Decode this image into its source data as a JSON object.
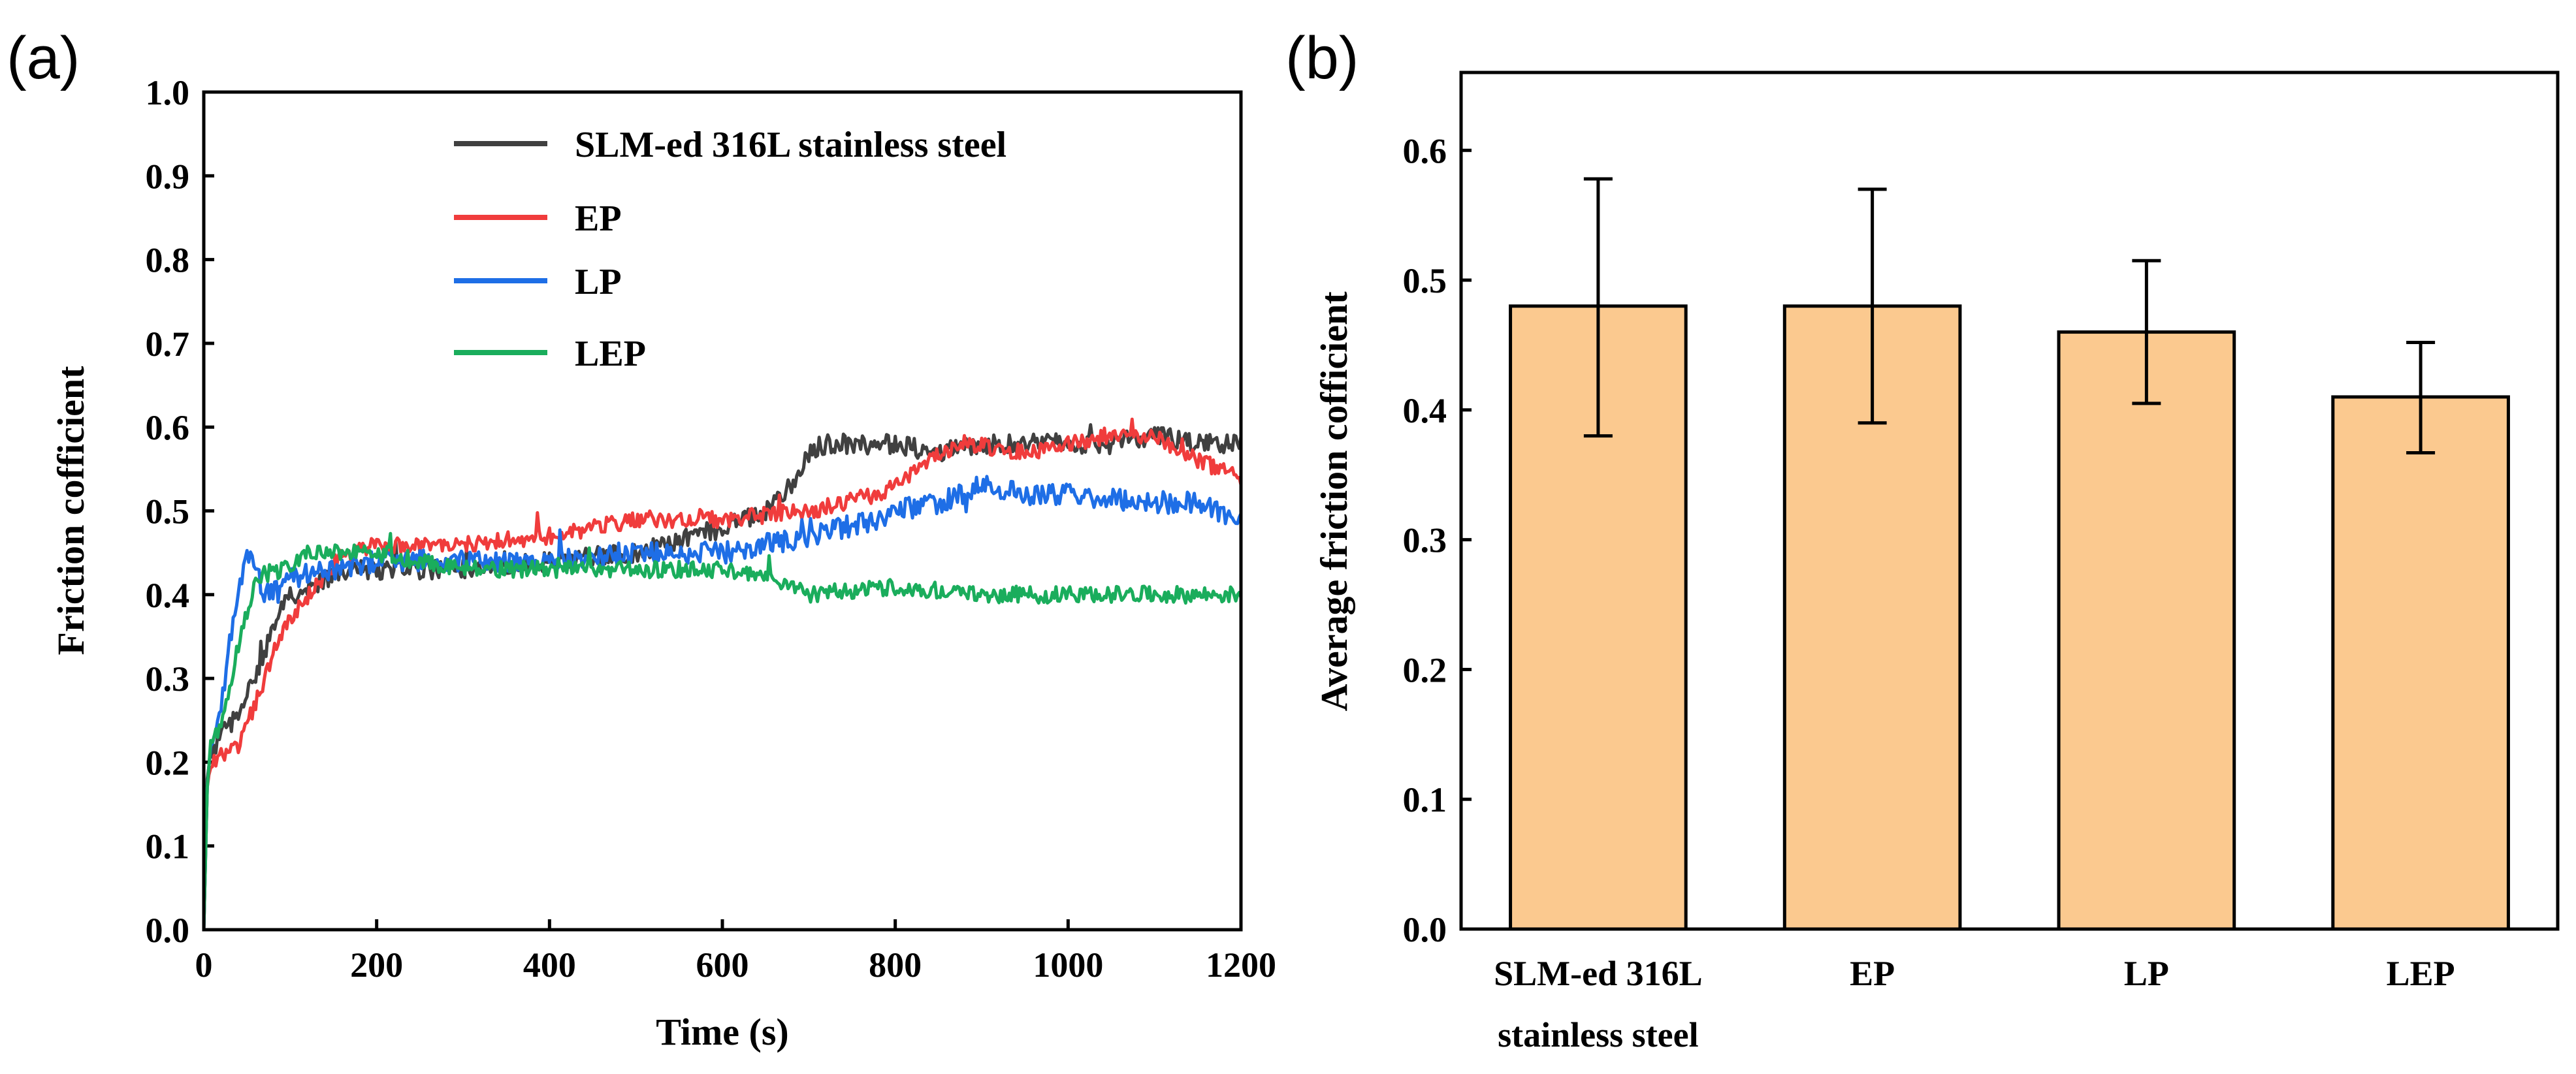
{
  "chart_data": [
    {
      "panel_label": "(a)",
      "type": "line",
      "xlabel": "Time (s)",
      "ylabel": "Friction cofficient",
      "xlim": [
        0,
        1200
      ],
      "ylim": [
        0.0,
        1.0
      ],
      "x_ticks": [
        "0",
        "200",
        "400",
        "600",
        "800",
        "1000",
        "1200"
      ],
      "x_tick_values": [
        0,
        200,
        400,
        600,
        800,
        1000,
        1200
      ],
      "y_ticks": [
        "0.0",
        "0.1",
        "0.2",
        "0.3",
        "0.4",
        "0.5",
        "0.6",
        "0.7",
        "0.8",
        "0.9",
        "1.0"
      ],
      "y_tick_values": [
        0.0,
        0.1,
        0.2,
        0.3,
        0.4,
        0.5,
        0.6,
        0.7,
        0.8,
        0.9,
        1.0
      ],
      "legend_position": "top-center",
      "series": [
        {
          "name": "SLM-ed 316L stainless steel",
          "color": "#404040",
          "noise": 0.012,
          "x": [
            0,
            4,
            8,
            20,
            40,
            60,
            80,
            100,
            130,
            160,
            200,
            300,
            400,
            500,
            600,
            650,
            680,
            700,
            720,
            800,
            850,
            900,
            1000,
            1050,
            1100,
            1150,
            1200
          ],
          "y": [
            0.0,
            0.18,
            0.21,
            0.23,
            0.26,
            0.3,
            0.36,
            0.4,
            0.41,
            0.43,
            0.43,
            0.43,
            0.44,
            0.45,
            0.48,
            0.5,
            0.53,
            0.57,
            0.58,
            0.58,
            0.57,
            0.58,
            0.58,
            0.58,
            0.59,
            0.58,
            0.58
          ]
        },
        {
          "name": "EP",
          "color": "#f03c3c",
          "noise": 0.01,
          "x": [
            0,
            4,
            8,
            20,
            40,
            60,
            80,
            100,
            130,
            160,
            200,
            300,
            400,
            500,
            600,
            700,
            780,
            840,
            880,
            950,
            1000,
            1050,
            1100,
            1150,
            1200
          ],
          "y": [
            0.0,
            0.17,
            0.2,
            0.21,
            0.22,
            0.27,
            0.33,
            0.37,
            0.41,
            0.45,
            0.46,
            0.46,
            0.47,
            0.49,
            0.49,
            0.5,
            0.52,
            0.56,
            0.58,
            0.57,
            0.58,
            0.59,
            0.59,
            0.56,
            0.54
          ]
        },
        {
          "name": "LP",
          "color": "#1e6ee6",
          "noise": 0.013,
          "x": [
            0,
            4,
            8,
            20,
            35,
            50,
            60,
            70,
            100,
            150,
            200,
            300,
            400,
            500,
            600,
            700,
            780,
            800,
            850,
            900,
            950,
            1000,
            1100,
            1150,
            1200
          ],
          "y": [
            0.0,
            0.17,
            0.22,
            0.26,
            0.38,
            0.45,
            0.43,
            0.4,
            0.42,
            0.43,
            0.44,
            0.44,
            0.44,
            0.45,
            0.45,
            0.47,
            0.49,
            0.5,
            0.51,
            0.53,
            0.52,
            0.52,
            0.51,
            0.51,
            0.49
          ]
        },
        {
          "name": "LEP",
          "color": "#1aad5c",
          "noise": 0.01,
          "x": [
            0,
            4,
            8,
            20,
            40,
            60,
            90,
            120,
            200,
            300,
            400,
            500,
            600,
            650,
            700,
            800,
            900,
            1000,
            1100,
            1200
          ],
          "y": [
            0.0,
            0.17,
            0.22,
            0.24,
            0.34,
            0.42,
            0.43,
            0.45,
            0.45,
            0.43,
            0.43,
            0.43,
            0.43,
            0.42,
            0.4,
            0.41,
            0.4,
            0.4,
            0.4,
            0.4
          ]
        }
      ]
    },
    {
      "panel_label": "(b)",
      "type": "bar",
      "ylabel": "Average friction cofficient",
      "ylim": [
        0.0,
        0.66
      ],
      "y_ticks": [
        "0.0",
        "0.1",
        "0.2",
        "0.3",
        "0.4",
        "0.5",
        "0.6"
      ],
      "y_tick_values": [
        0.0,
        0.1,
        0.2,
        0.3,
        0.4,
        0.5,
        0.6
      ],
      "bar_color": "#fbc98f",
      "categories": [
        {
          "line1": "SLM-ed 316L",
          "line2": "stainless steel"
        },
        {
          "line1": "EP",
          "line2": ""
        },
        {
          "line1": "LP",
          "line2": ""
        },
        {
          "line1": "LEP",
          "line2": ""
        }
      ],
      "values": [
        0.48,
        0.48,
        0.46,
        0.41
      ],
      "error_low": [
        0.38,
        0.39,
        0.405,
        0.367
      ],
      "error_high": [
        0.578,
        0.57,
        0.515,
        0.452
      ]
    }
  ]
}
